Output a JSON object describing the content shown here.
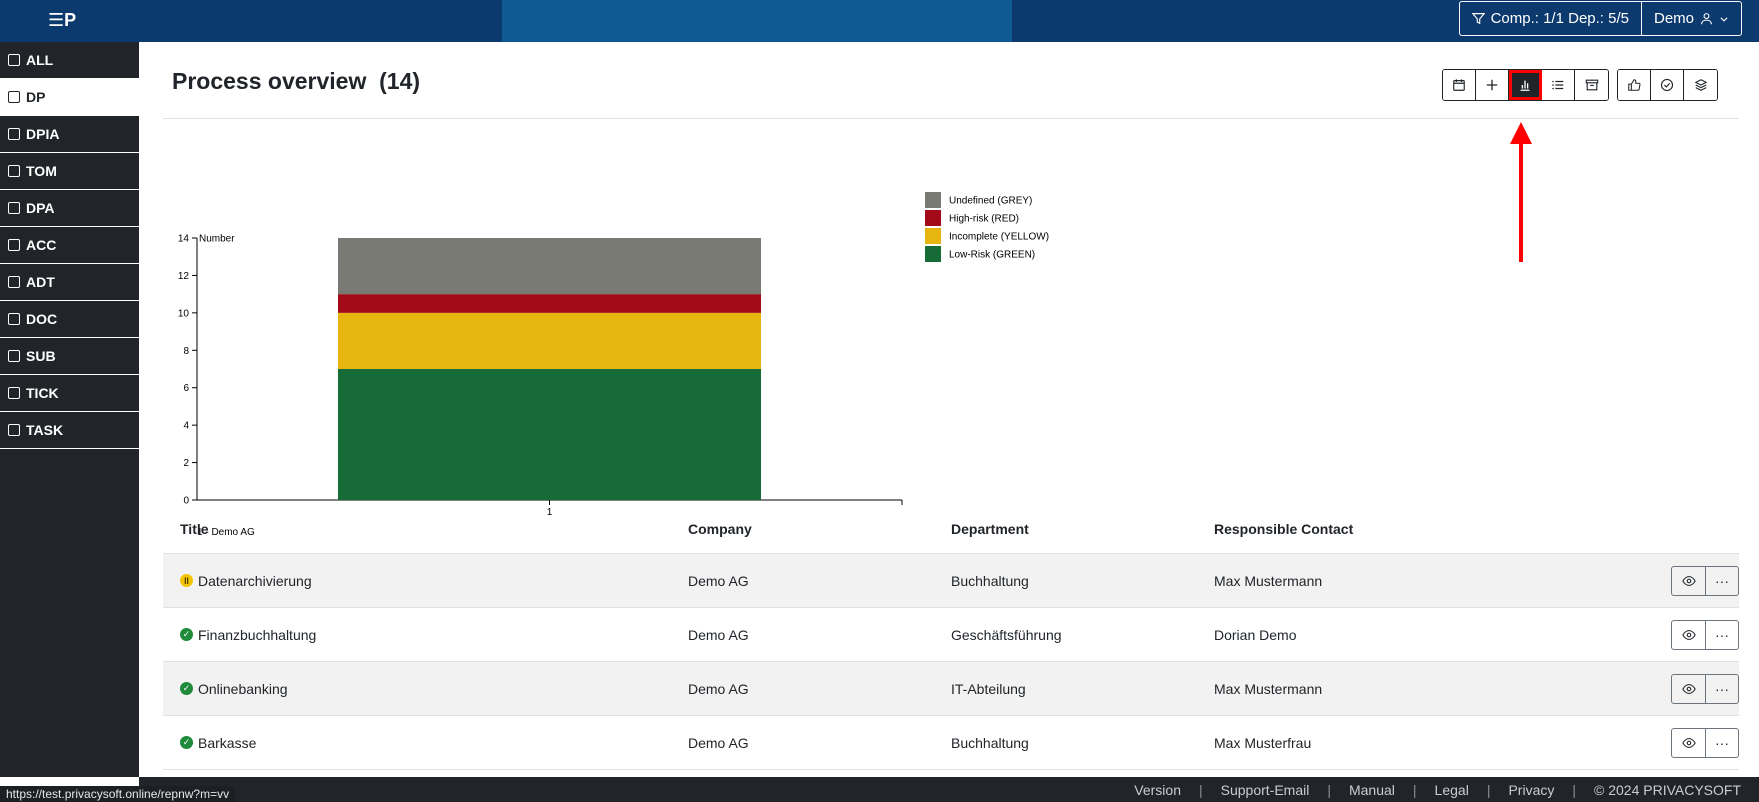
{
  "header": {
    "logo_text": "☰P",
    "filter_label": "Comp.: 1/1 Dep.: 5/5",
    "user_label": "Demo"
  },
  "sidebar": {
    "items": [
      {
        "label": "ALL",
        "icon": "home-icon"
      },
      {
        "label": "DP",
        "icon": "folder-icon",
        "active": true
      },
      {
        "label": "DPIA",
        "icon": "bolt-icon"
      },
      {
        "label": "TOM",
        "icon": "clipboard-icon"
      },
      {
        "label": "DPA",
        "icon": "share-icon"
      },
      {
        "label": "ACC",
        "icon": "map-icon"
      },
      {
        "label": "ADT",
        "icon": "compass-icon"
      },
      {
        "label": "DOC",
        "icon": "book-icon"
      },
      {
        "label": "SUB",
        "icon": "folder-plus-icon"
      },
      {
        "label": "TICK",
        "icon": "clock-icon"
      },
      {
        "label": "TASK",
        "icon": "file-icon"
      }
    ]
  },
  "main": {
    "title": "Process overview",
    "count": "(14)"
  },
  "toolbar": {
    "group1": [
      "calendar-icon",
      "plus-icon",
      "bar-chart-icon",
      "list-icon",
      "archive-icon"
    ],
    "group2": [
      "thumbs-up-icon",
      "check-circle-icon",
      "layers-icon"
    ]
  },
  "chart_data": {
    "type": "bar",
    "stacked": true,
    "categories": [
      "1"
    ],
    "ylabel": "Number",
    "ylim": [
      0,
      14
    ],
    "yticks": [
      0,
      2,
      4,
      6,
      8,
      10,
      12,
      14
    ],
    "xnote": "1 - Demo AG",
    "series": [
      {
        "name": "Low-Risk (GREEN)",
        "values": [
          7
        ],
        "color": "#166b37"
      },
      {
        "name": "Incomplete (YELLOW)",
        "values": [
          3
        ],
        "color": "#e6b510"
      },
      {
        "name": "High-risk (RED)",
        "values": [
          1
        ],
        "color": "#a10a16"
      },
      {
        "name": "Undefined (GREY)",
        "values": [
          3
        ],
        "color": "#797a74"
      }
    ],
    "legend": [
      "Undefined (GREY)",
      "High-risk (RED)",
      "Incomplete (YELLOW)",
      "Low-Risk (GREEN)"
    ],
    "legend_position": "right"
  },
  "table": {
    "headers": [
      "Title",
      "Company",
      "Department",
      "Responsible Contact"
    ],
    "rows": [
      {
        "status": "yellow",
        "status_glyph": "II",
        "title": "Datenarchivierung",
        "company": "Demo AG",
        "department": "Buchhaltung",
        "contact": "Max Mustermann"
      },
      {
        "status": "green",
        "status_glyph": "✓",
        "title": "Finanzbuchhaltung",
        "company": "Demo AG",
        "department": "Geschäftsführung",
        "contact": "Dorian Demo"
      },
      {
        "status": "green",
        "status_glyph": "✓",
        "title": "Onlinebanking",
        "company": "Demo AG",
        "department": "IT-Abteilung",
        "contact": "Max Mustermann"
      },
      {
        "status": "green",
        "status_glyph": "✓",
        "title": "Barkasse",
        "company": "Demo AG",
        "department": "Buchhaltung",
        "contact": "Max Musterfrau"
      }
    ],
    "row_actions": {
      "view_glyph": "👁",
      "more_glyph": "···"
    }
  },
  "footer": {
    "links": [
      "Version",
      "Support-Email",
      "Manual",
      "Legal",
      "Privacy"
    ],
    "separator": "|",
    "copyright": "© 2024 PRIVACYSOFT"
  },
  "browser_status_url": "https://test.privacysoft.online/repnw?m=vv",
  "colors": {
    "navy": "#0d3a6e",
    "sidebar": "#212529",
    "annotation": "#ff0000"
  }
}
